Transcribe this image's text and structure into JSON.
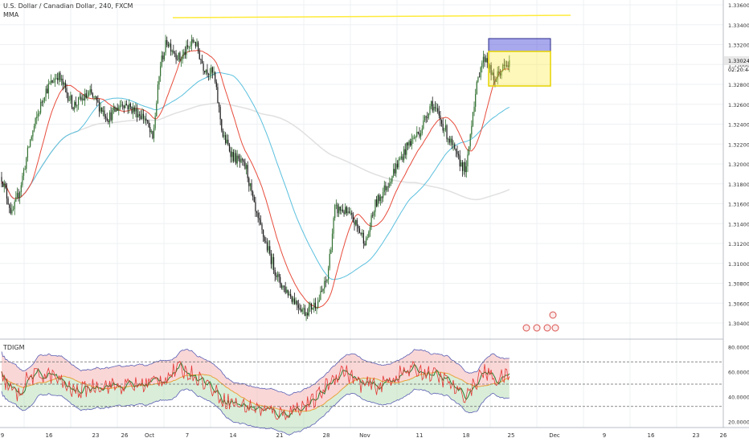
{
  "header": {
    "title": "U.S. Dollar / Canadian Dollar, 240, FXCM",
    "indicator": "MMA"
  },
  "sub_indicator": {
    "label": "TDIGM"
  },
  "price_axis": {
    "ticks": [
      "1.33600",
      "1.33400",
      "1.33200",
      "1.33000",
      "1.32800",
      "1.32600",
      "1.32400",
      "1.32200",
      "1.32000",
      "1.31800",
      "1.31600",
      "1.31400",
      "1.31200",
      "1.31000",
      "1.30800",
      "1.30600",
      "1.30400"
    ],
    "last_price": "1.33024",
    "countdown": "02:20:44"
  },
  "osc_axis": {
    "ticks": [
      "80.0000",
      "60.0000",
      "40.0000",
      "20.0000"
    ]
  },
  "time_axis": {
    "ticks": [
      "9",
      "16",
      "23",
      "26",
      "Oct",
      "7",
      "14",
      "21",
      "28",
      "Nov",
      "11",
      "18",
      "25",
      "Dec",
      "9",
      "16",
      "23",
      "26"
    ]
  },
  "colors": {
    "up": "#2f6f2f",
    "down": "#1a1a1a",
    "ma_fast": "#e74c3c",
    "ma_mid": "#5bc0de",
    "ma_slow": "#e0e0e0",
    "yellow": "#ffeb3b",
    "box_blue": "#3f3fd6"
  },
  "chart_data": [
    {
      "type": "candlestick",
      "symbol": "USDCAD",
      "title": "U.S. Dollar / Canadian Dollar, 240, FXCM",
      "ylim": [
        1.3035,
        1.3365
      ],
      "anchors": [
        [
          0,
          1.3192
        ],
        [
          8,
          1.3155
        ],
        [
          14,
          1.318
        ],
        [
          22,
          1.3228
        ],
        [
          33,
          1.3275
        ],
        [
          43,
          1.3292
        ],
        [
          55,
          1.3262
        ],
        [
          68,
          1.3273
        ],
        [
          82,
          1.325
        ],
        [
          93,
          1.3265
        ],
        [
          110,
          1.325
        ],
        [
          116,
          1.3228
        ],
        [
          122,
          1.3302
        ],
        [
          127,
          1.3325
        ],
        [
          137,
          1.3307
        ],
        [
          148,
          1.3326
        ],
        [
          155,
          1.33
        ],
        [
          163,
          1.3292
        ],
        [
          170,
          1.3232
        ],
        [
          178,
          1.3212
        ],
        [
          188,
          1.32
        ],
        [
          195,
          1.3156
        ],
        [
          203,
          1.3127
        ],
        [
          213,
          1.309
        ],
        [
          224,
          1.3073
        ],
        [
          233,
          1.306
        ],
        [
          243,
          1.307
        ],
        [
          250,
          1.3092
        ],
        [
          256,
          1.316
        ],
        [
          262,
          1.316
        ],
        [
          270,
          1.315
        ],
        [
          280,
          1.3128
        ],
        [
          287,
          1.3165
        ],
        [
          295,
          1.3182
        ],
        [
          303,
          1.3202
        ],
        [
          313,
          1.3225
        ],
        [
          322,
          1.3238
        ],
        [
          330,
          1.3265
        ],
        [
          340,
          1.324
        ],
        [
          350,
          1.321
        ],
        [
          357,
          1.3198
        ],
        [
          362,
          1.3258
        ],
        [
          368,
          1.3302
        ],
        [
          372,
          1.331
        ],
        [
          378,
          1.3285
        ],
        [
          384,
          1.3297
        ],
        [
          390,
          1.3302
        ]
      ],
      "series": [
        {
          "name": "MA fast",
          "period": 20
        },
        {
          "name": "MA mid",
          "period": 60
        },
        {
          "name": "MA slow",
          "period": 200
        }
      ]
    },
    {
      "type": "oscillator",
      "name": "TDIGM",
      "ylim": [
        15,
        85
      ],
      "levels": [
        68,
        50,
        32
      ],
      "anchors": [
        [
          0,
          55
        ],
        [
          12,
          40
        ],
        [
          20,
          55
        ],
        [
          33,
          58
        ],
        [
          40,
          56
        ],
        [
          55,
          44
        ],
        [
          62,
          45
        ],
        [
          75,
          50
        ],
        [
          90,
          48
        ],
        [
          110,
          50
        ],
        [
          125,
          55
        ],
        [
          135,
          62
        ],
        [
          148,
          58
        ],
        [
          158,
          50
        ],
        [
          170,
          38
        ],
        [
          180,
          34
        ],
        [
          190,
          32
        ],
        [
          205,
          28
        ],
        [
          215,
          26
        ],
        [
          225,
          30
        ],
        [
          240,
          36
        ],
        [
          252,
          52
        ],
        [
          262,
          62
        ],
        [
          275,
          50
        ],
        [
          290,
          48
        ],
        [
          305,
          58
        ],
        [
          318,
          62
        ],
        [
          330,
          58
        ],
        [
          343,
          52
        ],
        [
          353,
          40
        ],
        [
          360,
          45
        ],
        [
          370,
          60
        ],
        [
          380,
          54
        ],
        [
          390,
          57
        ]
      ]
    }
  ]
}
